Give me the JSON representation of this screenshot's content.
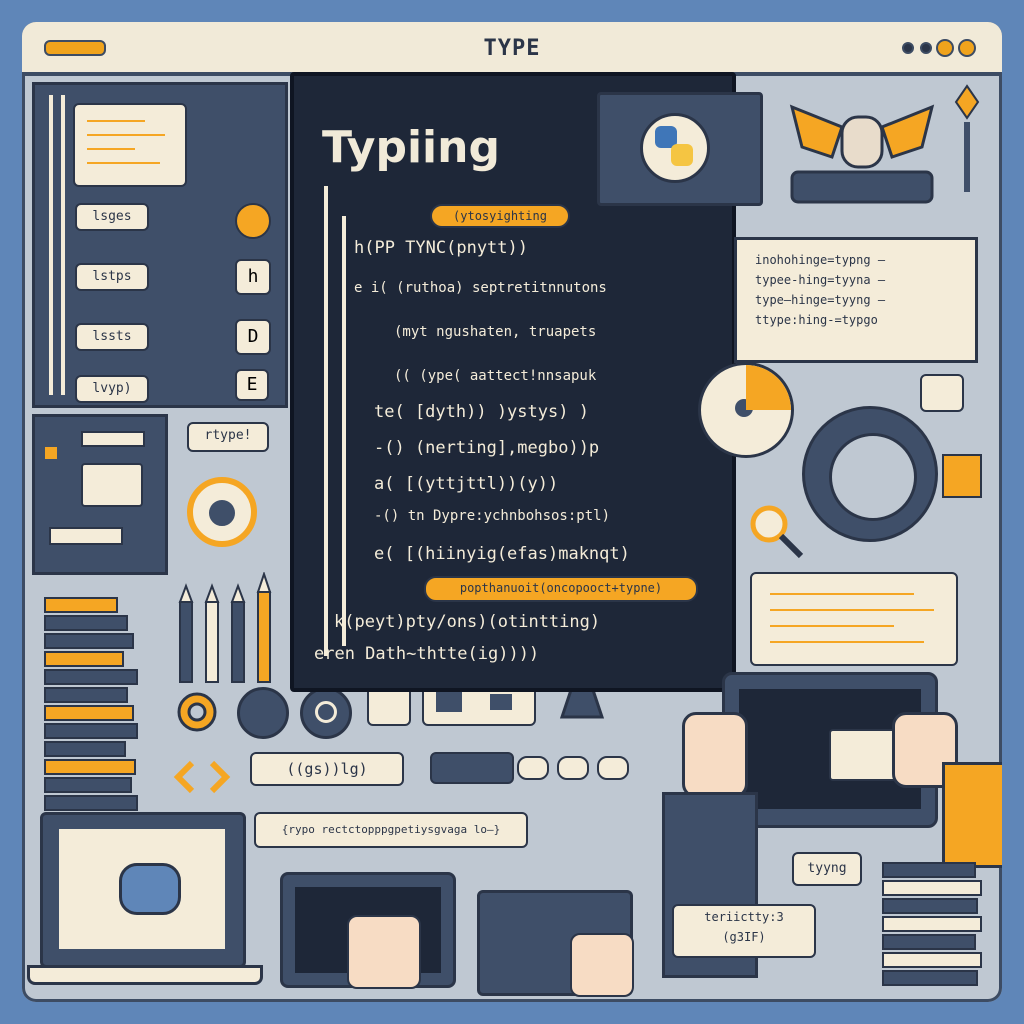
{
  "window": {
    "title": "TYPE"
  },
  "header": {
    "title": "Typiing"
  },
  "sidebar": {
    "items": [
      {
        "label": "lsges"
      },
      {
        "label": "lstps"
      },
      {
        "label": "lssts"
      },
      {
        "label": "lvyp)"
      }
    ],
    "icons": [
      "circle-icon",
      "h-icon",
      "d-icon",
      "e-icon"
    ]
  },
  "code": {
    "tag_top": "(ytosyighting",
    "lines": [
      "h(PP TYNC(pnytt))",
      "e i( (ruthoa) septretitnnutons",
      "(myt  ngushaten, truapets",
      "(( (ype( aattect!nnsapuk",
      "te( [dyth)) )ystys) )",
      "-() (nerting],megbo))p",
      "a( [(yttjttl))(y))",
      "-() tn  Dypre:ychnbohsos:ptl)",
      "e( [(hiinyig(efas)maknqt)",
      "popthanuoit(oncopooct+typne)",
      "k(peyt)pty/ons)(otintting)",
      "eren Dath~thtte(ig))))"
    ]
  },
  "hints": {
    "lines": [
      "inohohinge=typng —",
      "typee-hing=tyyna —",
      "type—hinge=tyyng —",
      "ttype:hing-=typgo"
    ]
  },
  "labels": {
    "rtype": "rtype!",
    "glyph_tag": "((gs))lg)",
    "bracket_line": "{rypo  rectctopppgpetiysgvaga  lo—}",
    "typing_bubble": "tyyng",
    "small_card": "teriictty:3",
    "small_card2": "(g3IF)"
  },
  "colors": {
    "accent": "#f5a623",
    "dark": "#1e2738",
    "cream": "#f4ecd9",
    "navy": "#3f4f69"
  }
}
